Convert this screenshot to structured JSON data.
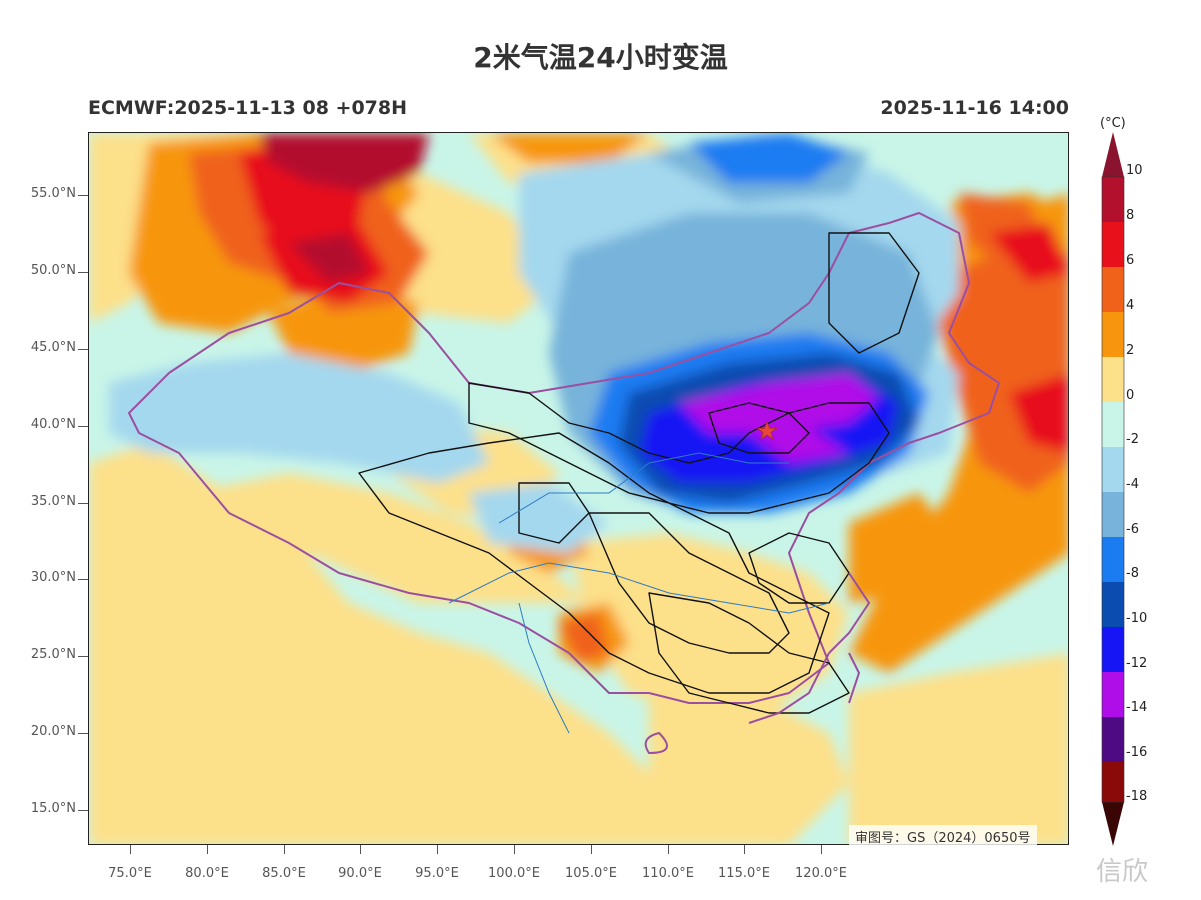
{
  "title": "2米气温24小时变温",
  "model_info": "ECMWF:2025-11-13 08 +078H",
  "valid_time": "2025-11-16 14:00",
  "approval_number": "审图号：GS（2024）0650号",
  "watermark": "信欣",
  "axes": {
    "latitude_labels": [
      "55.0°N",
      "50.0°N",
      "45.0°N",
      "40.0°N",
      "35.0°N",
      "30.0°N",
      "25.0°N",
      "20.0°N",
      "15.0°N"
    ],
    "longitude_labels": [
      "75.0°E",
      "80.0°E",
      "85.0°E",
      "90.0°E",
      "95.0°E",
      "100.0°E",
      "105.0°E",
      "110.0°E",
      "115.0°E",
      "120.0°E"
    ]
  },
  "colorbar": {
    "unit": "(°C)",
    "labels": [
      "10",
      "8",
      "6",
      "4",
      "2",
      "0",
      "-2",
      "-4",
      "-6",
      "-8",
      "-10",
      "-12",
      "-14",
      "-16",
      "-18"
    ],
    "colors": [
      "#b3102e",
      "#e8101a",
      "#f0621a",
      "#f7960e",
      "#fde08a",
      "#c9f5e8",
      "#a4d8ee",
      "#77b3da",
      "#1b7cf2",
      "#0a4cb0",
      "#1515f5",
      "#b00ee8",
      "#4e0a82",
      "#8a0a0a"
    ],
    "top_arrow_color": "#8a1430",
    "bottom_arrow_color": "#3a0505"
  },
  "marker": {
    "name": "Beijing",
    "icon": "star-icon",
    "color": "#e8483a"
  }
}
